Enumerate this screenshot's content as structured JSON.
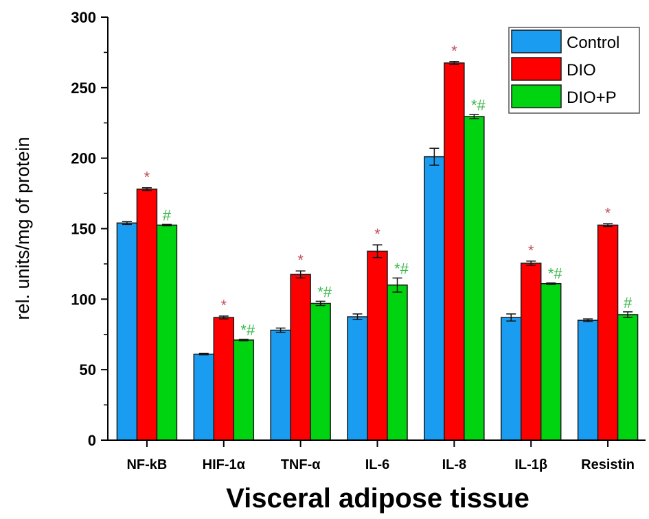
{
  "chart_data": {
    "type": "bar",
    "title": "",
    "xlabel": "Visceral adipose tissue",
    "ylabel": "rel. units/mg of protein",
    "ylim": [
      0,
      300
    ],
    "yticks": [
      "0",
      "50",
      "100",
      "150",
      "200",
      "250",
      "300"
    ],
    "ytick_values": [
      0,
      50,
      100,
      150,
      200,
      250,
      300
    ],
    "categories": [
      "NF-kB",
      "HIF-1α",
      "TNF-α",
      "IL-6",
      "IL-8",
      "IL-1β",
      "Resistin"
    ],
    "legend_position": "top-right",
    "grid": false,
    "series": [
      {
        "name": "Control",
        "color": "#1a9cf0",
        "values": [
          154,
          61,
          78,
          87.5,
          201,
          87,
          85
        ],
        "errors": [
          1,
          0.5,
          1.5,
          2,
          6,
          2.5,
          1
        ],
        "annotations": [
          "",
          "",
          "",
          "",
          "",
          "",
          ""
        ]
      },
      {
        "name": "DIO",
        "color": "#ff0000",
        "annotation_color": "#c0505a",
        "values": [
          178,
          87,
          117.5,
          134,
          267.5,
          125.5,
          152.5
        ],
        "errors": [
          1,
          1,
          2.5,
          4.5,
          1,
          1.5,
          1
        ],
        "annotations": [
          "*",
          "*",
          "*",
          "*",
          "*",
          "*",
          "*"
        ]
      },
      {
        "name": "DIO+P",
        "color": "#00d410",
        "annotation_color": "#3cb84a",
        "values": [
          152.5,
          71,
          97,
          110,
          229.5,
          111,
          89
        ],
        "errors": [
          0.5,
          0.5,
          1.5,
          5,
          1.5,
          0.5,
          2
        ],
        "annotations": [
          "#",
          "*#",
          "*#",
          "*#",
          "*#",
          "*#",
          "#"
        ]
      }
    ]
  }
}
